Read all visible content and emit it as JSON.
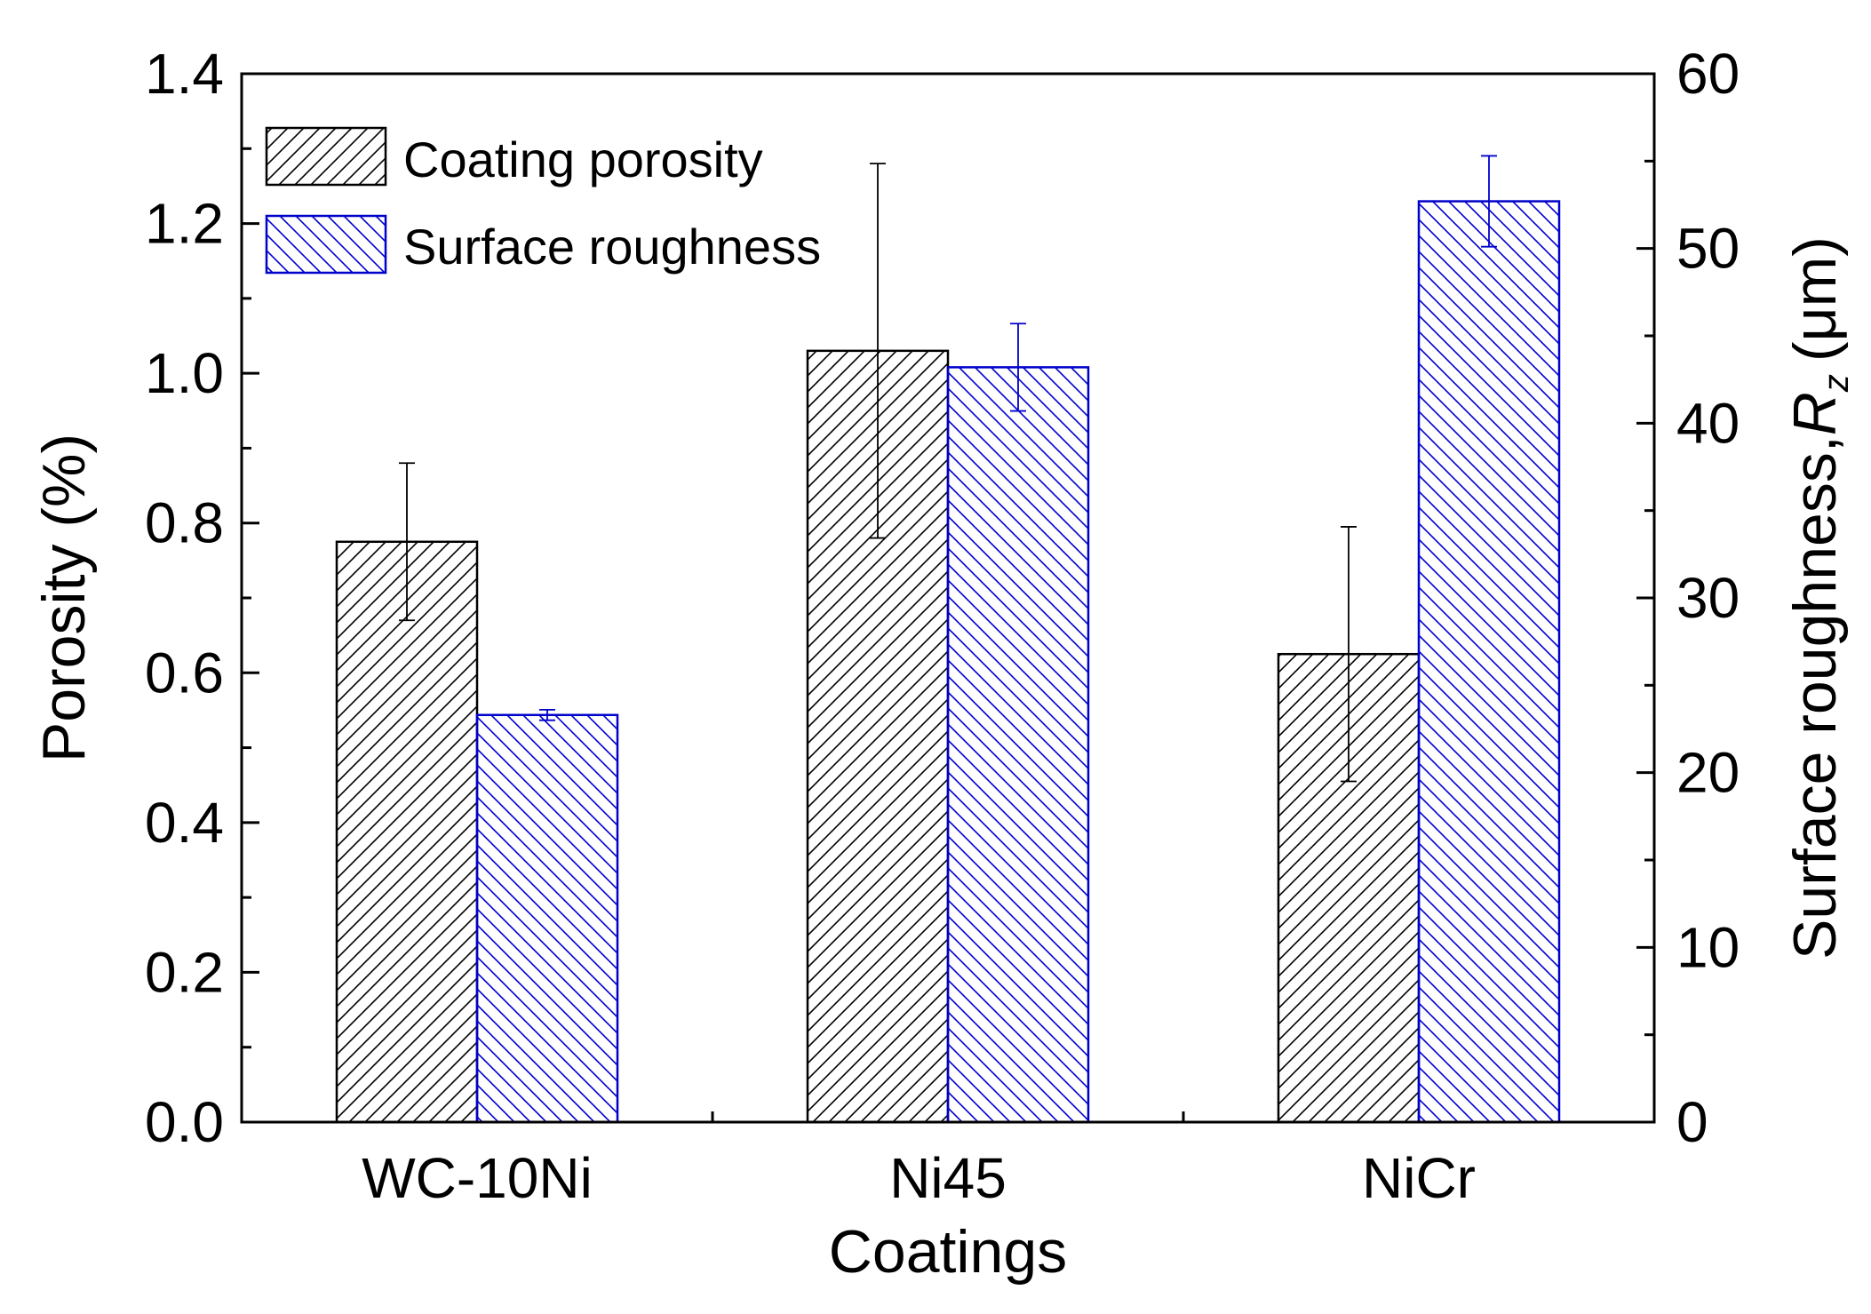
{
  "chart_data": {
    "type": "bar",
    "xlabel": "Coatings",
    "categories": [
      "WC-10Ni",
      "Ni45",
      "NiCr"
    ],
    "y_left": {
      "label": "Porosity (%)",
      "lim": [
        0,
        1.4
      ],
      "ticks": [
        "0.0",
        "0.2",
        "0.4",
        "0.6",
        "0.8",
        "1.0",
        "1.2",
        "1.4"
      ]
    },
    "y_right": {
      "label_main": "Surface roughness,",
      "label_var": "R",
      "label_sub": "z",
      "label_unit": "(μm)",
      "lim": [
        0,
        60
      ],
      "ticks": [
        "0",
        "10",
        "20",
        "30",
        "40",
        "50",
        "60"
      ]
    },
    "series": [
      {
        "name": "Coating porosity",
        "axis": "left",
        "color": "#000000",
        "hatch": "forward-diagonal",
        "values": [
          0.775,
          1.03,
          0.625
        ],
        "errors": [
          0.105,
          0.25,
          0.17
        ]
      },
      {
        "name": "Surface roughness",
        "axis": "right",
        "color": "#0000cc",
        "hatch": "backward-diagonal",
        "values": [
          23.3,
          43.2,
          52.7
        ],
        "errors": [
          0.3,
          2.5,
          2.6
        ]
      }
    ],
    "legend": "top-left",
    "grid": false
  }
}
